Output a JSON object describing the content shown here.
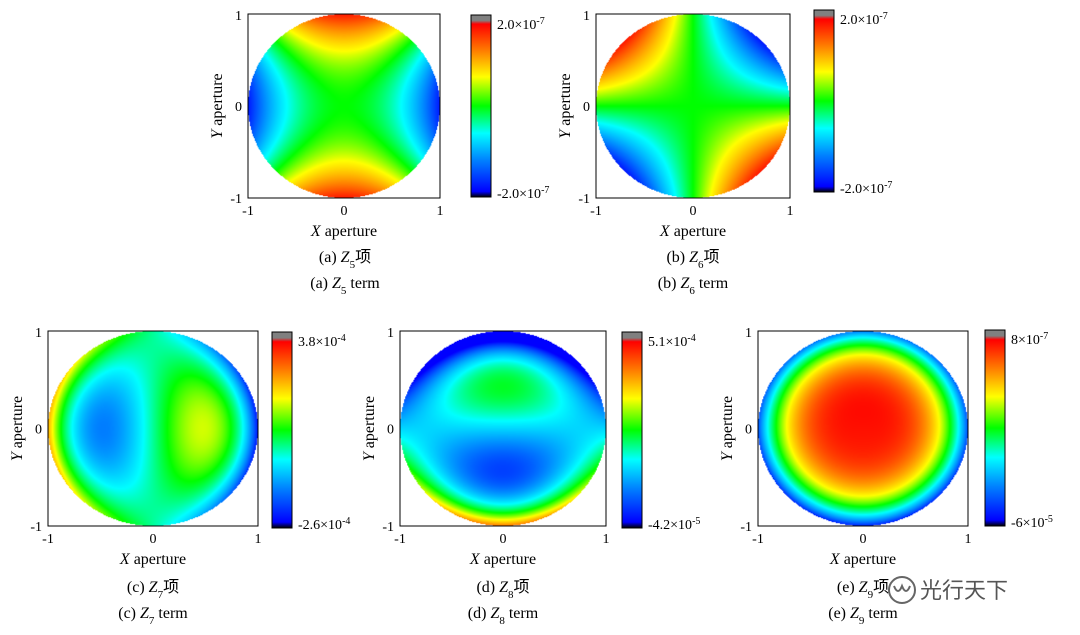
{
  "figure": {
    "panels": [
      {
        "id": "a",
        "map": "z5",
        "axis_ticks": {
          "ymax": "1",
          "ymid": "0",
          "ymin": "-1",
          "xmin": "-1",
          "xmid": "0",
          "xmax": "1"
        },
        "xlabel": {
          "var": "X",
          "rest": " aperture"
        },
        "ylabel": {
          "var": "Y",
          "rest": " aperture"
        },
        "colorbar": {
          "max_label": "2.0×10",
          "max_exp": "-7",
          "min_label": "-2.0×10",
          "min_exp": "-7"
        },
        "caption_cn": {
          "prefix": "(a) ",
          "var": "Z",
          "sub": "5",
          "suffix": "项"
        },
        "caption_en": {
          "prefix": "(a) ",
          "var": "Z",
          "sub": "5",
          "suffix": " term"
        }
      },
      {
        "id": "b",
        "map": "z6",
        "axis_ticks": {
          "ymax": "1",
          "ymid": "0",
          "ymin": "-1",
          "xmin": "-1",
          "xmid": "0",
          "xmax": "1"
        },
        "xlabel": {
          "var": "X",
          "rest": " aperture"
        },
        "ylabel": {
          "var": "Y",
          "rest": " aperture"
        },
        "colorbar": {
          "max_label": "2.0×10",
          "max_exp": "-7",
          "min_label": "-2.0×10",
          "min_exp": "-7"
        },
        "caption_cn": {
          "prefix": "(b) ",
          "var": "Z",
          "sub": "6",
          "suffix": "项"
        },
        "caption_en": {
          "prefix": "(b) ",
          "var": "Z",
          "sub": "6",
          "suffix": " term"
        }
      },
      {
        "id": "c",
        "map": "z7",
        "axis_ticks": {
          "ymax": "1",
          "ymid": "0",
          "ymin": "-1",
          "xmin": "-1",
          "xmid": "0",
          "xmax": "1"
        },
        "xlabel": {
          "var": "X",
          "rest": " aperture"
        },
        "ylabel": {
          "var": "Y",
          "rest": " aperture"
        },
        "colorbar": {
          "max_label": "3.8×10",
          "max_exp": "-4",
          "min_label": "-2.6×10",
          "min_exp": "-4"
        },
        "caption_cn": {
          "prefix": "(c) ",
          "var": "Z",
          "sub": "7",
          "suffix": "项"
        },
        "caption_en": {
          "prefix": "(c) ",
          "var": "Z",
          "sub": "7",
          "suffix": " term"
        }
      },
      {
        "id": "d",
        "map": "z8",
        "axis_ticks": {
          "ymax": "1",
          "ymid": "0",
          "ymin": "-1",
          "xmin": "-1",
          "xmid": "0",
          "xmax": "1"
        },
        "xlabel": {
          "var": "X",
          "rest": " aperture"
        },
        "ylabel": {
          "var": "Y",
          "rest": " aperture"
        },
        "colorbar": {
          "max_label": "5.1×10",
          "max_exp": "-4",
          "min_label": "-4.2×10",
          "min_exp": "-5"
        },
        "caption_cn": {
          "prefix": "(d) ",
          "var": "Z",
          "sub": "8",
          "suffix": "项"
        },
        "caption_en": {
          "prefix": "(d) ",
          "var": "Z",
          "sub": "8",
          "suffix": " term"
        }
      },
      {
        "id": "e",
        "map": "z9",
        "axis_ticks": {
          "ymax": "1",
          "ymid": "0",
          "ymin": "-1",
          "xmin": "-1",
          "xmid": "0",
          "xmax": "1"
        },
        "xlabel": {
          "var": "X",
          "rest": " aperture"
        },
        "ylabel": {
          "var": "Y",
          "rest": " aperture"
        },
        "colorbar": {
          "max_label": "8×10",
          "max_exp": "-7",
          "min_label": "-6×10",
          "min_exp": "-5"
        },
        "caption_cn": {
          "prefix": "(e) ",
          "var": "Z",
          "sub": "9",
          "suffix": "项"
        },
        "caption_en": {
          "prefix": "(e) ",
          "var": "Z",
          "sub": "9",
          "suffix": " term"
        }
      }
    ],
    "watermark": {
      "text": "光行天下",
      "icon": "wechat-channel-icon"
    },
    "colormap": [
      "#000000",
      "#0000ff",
      "#0080ff",
      "#00ffff",
      "#00ff00",
      "#ffff00",
      "#ff8000",
      "#ff0000",
      "#808080"
    ]
  }
}
